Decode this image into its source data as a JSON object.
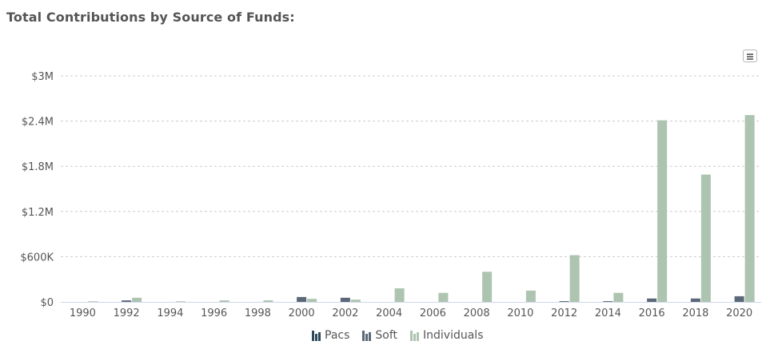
{
  "page": {
    "title": "Total Contributions by Source of Funds:"
  },
  "menu": {
    "icon": "hamburger-menu-icon"
  },
  "chart_data": {
    "type": "bar",
    "title": "Total Contributions by Source of Funds:",
    "xlabel": "",
    "ylabel": "",
    "categories": [
      "1990",
      "1992",
      "1994",
      "1996",
      "1998",
      "2000",
      "2002",
      "2004",
      "2006",
      "2008",
      "2010",
      "2012",
      "2014",
      "2016",
      "2018",
      "2020"
    ],
    "ylim": [
      0,
      3000000
    ],
    "yticks": [
      0,
      600000,
      1200000,
      1800000,
      2400000,
      3000000
    ],
    "ytick_labels": [
      "$0",
      "$600K",
      "$1.2M",
      "$1.8M",
      "$2.4M",
      "$3M"
    ],
    "grid": true,
    "legend_position": "bottom-center",
    "series": [
      {
        "name": "Pacs",
        "color": "#2b4a5a",
        "values": [
          0,
          0,
          0,
          0,
          0,
          0,
          0,
          0,
          0,
          0,
          0,
          0,
          0,
          0,
          0,
          0
        ]
      },
      {
        "name": "Soft",
        "color": "#5b6878",
        "values": [
          0,
          20000,
          0,
          0,
          0,
          65000,
          55000,
          0,
          0,
          0,
          0,
          10000,
          10000,
          45000,
          45000,
          75000
        ]
      },
      {
        "name": "Individuals",
        "color": "#adc4b0",
        "values": [
          8000,
          55000,
          8000,
          20000,
          20000,
          40000,
          30000,
          180000,
          120000,
          400000,
          150000,
          620000,
          120000,
          2410000,
          1690000,
          2480000
        ]
      }
    ]
  }
}
